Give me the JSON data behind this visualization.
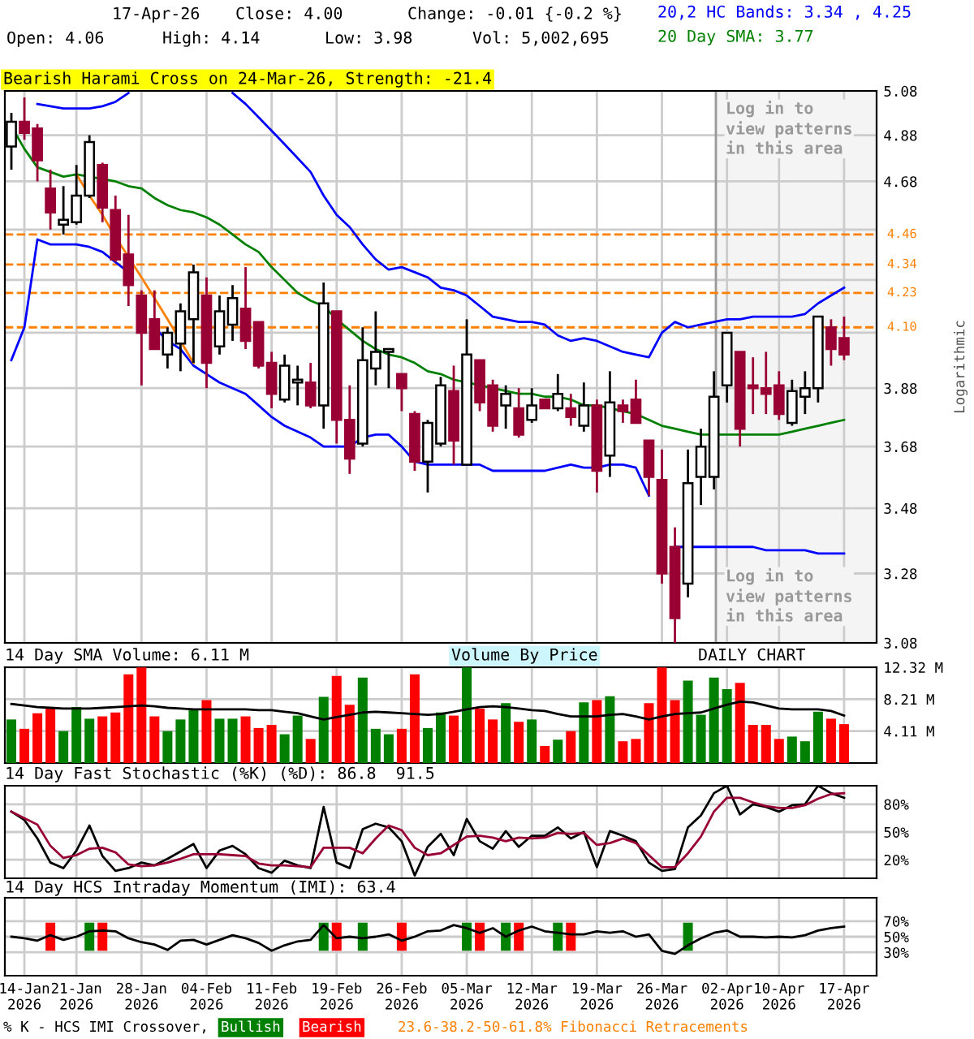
{
  "chart_data": [
    {
      "type": "candlestick",
      "categories": [
        null,
        null,
        null,
        null,
        null,
        null,
        null,
        null,
        null,
        null,
        null,
        null,
        null,
        null,
        null,
        null,
        null,
        null,
        null,
        null,
        null,
        null,
        null,
        null,
        null,
        null,
        null,
        null,
        null,
        null,
        null,
        null,
        null,
        null,
        null,
        null,
        null,
        null,
        null,
        null,
        null,
        null,
        null,
        null,
        null,
        null,
        null,
        null,
        null,
        null,
        null,
        null,
        null,
        null,
        null,
        null,
        null,
        null,
        null,
        null,
        null,
        null,
        null,
        null,
        null
      ],
      "ohlc": [
        [
          4.83,
          4.98,
          4.73,
          4.94
        ],
        [
          4.94,
          5.05,
          4.86,
          4.89
        ],
        [
          4.91,
          4.93,
          4.68,
          4.77
        ],
        [
          4.65,
          4.73,
          4.48,
          4.55
        ],
        [
          4.5,
          4.66,
          4.46,
          4.52
        ],
        [
          4.51,
          4.75,
          4.5,
          4.62
        ],
        [
          4.62,
          4.88,
          4.61,
          4.85
        ],
        [
          4.75,
          4.76,
          4.51,
          4.57
        ],
        [
          4.56,
          4.62,
          4.35,
          4.36
        ],
        [
          4.38,
          4.54,
          4.18,
          4.26
        ],
        [
          4.22,
          4.24,
          3.89,
          4.08
        ],
        [
          4.13,
          4.24,
          4.02,
          4.02
        ],
        [
          4.0,
          4.1,
          3.95,
          4.08
        ],
        [
          4.04,
          4.19,
          3.94,
          4.16
        ],
        [
          4.13,
          4.34,
          3.97,
          4.31
        ],
        [
          4.22,
          4.29,
          3.88,
          3.97
        ],
        [
          4.03,
          4.22,
          4.0,
          4.16
        ],
        [
          4.11,
          4.26,
          4.05,
          4.21
        ],
        [
          4.17,
          4.33,
          4.02,
          4.05
        ],
        [
          4.12,
          4.12,
          3.95,
          3.96
        ],
        [
          3.97,
          4.01,
          3.81,
          3.86
        ],
        [
          3.84,
          4.0,
          3.83,
          3.96
        ],
        [
          3.9,
          3.96,
          3.82,
          3.91
        ],
        [
          3.9,
          3.97,
          3.81,
          3.82
        ],
        [
          3.82,
          4.27,
          3.74,
          4.19
        ],
        [
          4.16,
          4.16,
          3.69,
          3.77
        ],
        [
          3.77,
          3.89,
          3.59,
          3.64
        ],
        [
          3.69,
          4.1,
          3.68,
          3.98
        ],
        [
          3.95,
          4.16,
          3.89,
          4.01
        ],
        [
          4.01,
          4.02,
          3.88,
          4.02
        ],
        [
          3.93,
          3.93,
          3.8,
          3.88
        ],
        [
          3.79,
          3.8,
          3.6,
          3.63
        ],
        [
          3.63,
          3.77,
          3.53,
          3.76
        ],
        [
          3.69,
          3.92,
          3.68,
          3.89
        ],
        [
          3.87,
          3.96,
          3.62,
          3.7
        ],
        [
          3.62,
          4.13,
          3.62,
          4.0
        ],
        [
          3.98,
          3.98,
          3.8,
          3.83
        ],
        [
          3.89,
          3.91,
          3.73,
          3.75
        ],
        [
          3.82,
          3.89,
          3.74,
          3.86
        ],
        [
          3.81,
          3.88,
          3.71,
          3.72
        ],
        [
          3.77,
          3.88,
          3.76,
          3.82
        ],
        [
          3.84,
          3.84,
          3.81,
          3.81
        ],
        [
          3.81,
          3.93,
          3.8,
          3.86
        ],
        [
          3.81,
          3.86,
          3.75,
          3.78
        ],
        [
          3.75,
          3.9,
          3.73,
          3.82
        ],
        [
          3.82,
          3.84,
          3.53,
          3.6
        ],
        [
          3.65,
          3.94,
          3.58,
          3.83
        ],
        [
          3.82,
          3.84,
          3.76,
          3.8
        ],
        [
          3.84,
          3.91,
          3.76,
          3.76
        ],
        [
          3.7,
          3.7,
          3.52,
          3.58
        ],
        [
          3.57,
          3.67,
          3.25,
          3.28
        ],
        [
          3.36,
          3.42,
          3.08,
          3.15
        ],
        [
          3.25,
          3.67,
          3.21,
          3.56
        ],
        [
          3.58,
          3.74,
          3.49,
          3.68
        ],
        [
          3.58,
          3.94,
          3.54,
          3.85
        ],
        [
          3.89,
          4.08,
          3.83,
          4.08
        ],
        [
          4.01,
          4.01,
          3.68,
          3.74
        ],
        [
          3.89,
          3.99,
          3.79,
          3.88
        ],
        [
          3.88,
          4.01,
          3.79,
          3.86
        ],
        [
          3.89,
          3.94,
          3.77,
          3.79
        ],
        [
          3.76,
          3.91,
          3.75,
          3.87
        ],
        [
          3.85,
          3.94,
          3.79,
          3.88
        ],
        [
          3.88,
          4.14,
          3.83,
          4.14
        ],
        [
          4.1,
          4.13,
          3.96,
          4.02
        ],
        [
          4.06,
          4.14,
          3.98,
          4.0
        ]
      ],
      "colors": [
        "#ffffff",
        "#990033",
        "#990033",
        "#990033",
        "#ffffff",
        "#ffffff",
        "#ffffff",
        "#990033",
        "#990033",
        "#990033",
        "#990033",
        "#990033",
        "#ffffff",
        "#ffffff",
        "#ffffff",
        "#990033",
        "#ffffff",
        "#ffffff",
        "#990033",
        "#990033",
        "#990033",
        "#ffffff",
        "#ffffff",
        "#990033",
        "#ffffff",
        "#990033",
        "#990033",
        "#ffffff",
        "#ffffff",
        "#ffffff",
        "#990033",
        "#990033",
        "#ffffff",
        "#ffffff",
        "#990033",
        "#ffffff",
        "#990033",
        "#990033",
        "#ffffff",
        "#990033",
        "#ffffff",
        "#990033",
        "#ffffff",
        "#990033",
        "#ffffff",
        "#990033",
        "#ffffff",
        "#990033",
        "#990033",
        "#990033",
        "#990033",
        "#990033",
        "#ffffff",
        "#ffffff",
        "#ffffff",
        "#ffffff",
        "#990033",
        "#990033",
        "#990033",
        "#990033",
        "#ffffff",
        "#ffffff",
        "#ffffff",
        "#990033",
        "#990033"
      ],
      "series": [
        {
          "type": "line",
          "name": "20,2 HC Bands: 3.34 , 4.25",
          "color": "#0000ff",
          "values": [
            null,
            null,
            5.02,
            5.01,
            5.0,
            5.0,
            5.0,
            5.01,
            5.03,
            5.07,
            null,
            null,
            null,
            null,
            null,
            null,
            null,
            5.07,
            5.02,
            4.96,
            4.9,
            4.84,
            4.78,
            4.72,
            4.62,
            4.54,
            4.49,
            4.42,
            4.36,
            4.32,
            4.33,
            4.31,
            4.29,
            4.25,
            4.24,
            4.22,
            4.18,
            4.14,
            4.13,
            4.12,
            4.12,
            4.11,
            4.07,
            4.05,
            4.06,
            4.05,
            4.03,
            4.01,
            4.0,
            3.99,
            4.08,
            4.12,
            4.1,
            4.11,
            4.12,
            4.13,
            4.13,
            4.14,
            4.14,
            4.14,
            4.14,
            4.15,
            4.19,
            4.22,
            4.25
          ]
        },
        {
          "type": "line",
          "color": "#0000ff",
          "values": [
            3.98,
            4.1,
            4.44,
            4.42,
            4.42,
            4.42,
            4.41,
            4.39,
            4.35,
            4.31,
            null,
            4.1,
            4.05,
            4.02,
            3.96,
            3.93,
            3.9,
            3.88,
            3.86,
            3.82,
            3.78,
            3.75,
            3.73,
            3.71,
            3.68,
            3.68,
            3.68,
            3.71,
            3.72,
            3.72,
            3.68,
            3.63,
            3.62,
            3.62,
            3.62,
            3.62,
            3.62,
            3.6,
            3.6,
            3.6,
            3.6,
            3.6,
            3.61,
            3.62,
            3.61,
            3.61,
            3.62,
            3.62,
            3.61,
            3.52,
            null,
            3.36,
            3.36,
            3.36,
            3.36,
            3.36,
            3.36,
            3.36,
            3.35,
            3.35,
            3.35,
            3.35,
            3.34,
            3.34,
            3.34
          ]
        },
        {
          "type": "line",
          "name": "20 Day SMA: 3.77",
          "color": "#008000",
          "values": [
            4.92,
            4.82,
            4.74,
            4.72,
            4.7,
            4.71,
            4.7,
            4.69,
            4.68,
            4.66,
            4.65,
            4.61,
            4.58,
            4.56,
            4.55,
            4.53,
            4.5,
            4.46,
            4.42,
            4.39,
            4.33,
            4.28,
            4.23,
            4.2,
            4.18,
            4.13,
            4.09,
            4.05,
            4.02,
            4.0,
            3.99,
            3.97,
            3.94,
            3.93,
            3.91,
            3.9,
            3.89,
            3.88,
            3.87,
            3.86,
            3.86,
            3.85,
            3.85,
            3.84,
            3.82,
            3.82,
            3.81,
            3.8,
            3.79,
            3.77,
            3.75,
            3.74,
            3.73,
            3.72,
            3.72,
            3.72,
            3.72,
            3.72,
            3.72,
            3.72,
            3.73,
            3.74,
            3.75,
            3.76,
            3.77
          ]
        },
        {
          "type": "line",
          "color": "#ff8000",
          "values": [
            null,
            null,
            null,
            null,
            null,
            4.71,
            4.62,
            4.54,
            4.45,
            4.37,
            4.29,
            4.21,
            4.13,
            4.05,
            3.97,
            null,
            null,
            null,
            null,
            null,
            null,
            null,
            null,
            null,
            null,
            null,
            null,
            null,
            null,
            null,
            null,
            null,
            null,
            null,
            null,
            null,
            null,
            null,
            null,
            null,
            null,
            null,
            null,
            null,
            null,
            null,
            null,
            null,
            null,
            null,
            null,
            null,
            null,
            null,
            null,
            null,
            null,
            null,
            null,
            null,
            null,
            null,
            null,
            null,
            null
          ]
        }
      ],
      "log": true,
      "ylim": [
        3.08,
        5.08
      ],
      "yticks": [
        5.08,
        4.88,
        4.68,
        {
          "value": 4.48,
          "label": null
        },
        {
          "value": 4.28,
          "label": null
        },
        {
          "value": 4.08,
          "label": null
        },
        3.88,
        3.68,
        3.48,
        3.28,
        3.08
      ],
      "ylabel": "Logarithmic",
      "ref_lines": [
        {
          "axis": "y",
          "value": 4.46,
          "label": "4.46",
          "color": "#ff8000",
          "line_style": "dashed"
        },
        {
          "axis": "y",
          "value": 4.34,
          "label": "4.34",
          "color": "#ff8000",
          "line_style": "dashed"
        },
        {
          "axis": "y",
          "value": 4.23,
          "label": "4.23",
          "color": "#ff8000",
          "line_style": "dashed"
        },
        {
          "axis": "y",
          "value": 4.1,
          "label": "4.10",
          "color": "#ff8000",
          "line_style": "dashed"
        }
      ],
      "annotations": [
        "17-Apr-26",
        "Close: 4.00",
        "Change: -0.01 {-0.2 %}",
        "Open: 4.06",
        "High: 4.14",
        "Low: 3.98",
        "Vol: 5,002,695",
        "Bearish Harami Cross on 24-Mar-26, Strength: -21.4",
        "Log in to\nview patterns\nin this area",
        "Log in to\nview patterns\nin this area"
      ],
      "grid": true,
      "legend": "top right",
      "tick_labels": "y"
    },
    {
      "type": "bar",
      "title": "14 Day SMA Volume: 6.11 M",
      "categories": [
        null,
        null,
        null,
        null,
        null,
        null,
        null,
        null,
        null,
        null,
        null,
        null,
        null,
        null,
        null,
        null,
        null,
        null,
        null,
        null,
        null,
        null,
        null,
        null,
        null,
        null,
        null,
        null,
        null,
        null,
        null,
        null,
        null,
        null,
        null,
        null,
        null,
        null,
        null,
        null,
        null,
        null,
        null,
        null,
        null,
        null,
        null,
        null,
        null,
        null,
        null,
        null,
        null,
        null,
        null,
        null,
        null,
        null,
        null,
        null,
        null,
        null,
        null,
        null,
        null
      ],
      "series": [
        {
          "values": [
            5.6,
            4.4,
            6.4,
            7.0,
            4.1,
            7.2,
            5.7,
            6.0,
            6.5,
            11.4,
            12.3,
            6.0,
            4.1,
            5.6,
            6.9,
            8.1,
            5.7,
            5.7,
            6.0,
            4.5,
            4.9,
            3.7,
            6.1,
            3.1,
            8.5,
            11.2,
            7.5,
            11.0,
            4.4,
            3.7,
            4.4,
            11.4,
            4.5,
            6.5,
            6.1,
            12.3,
            7.0,
            5.6,
            7.7,
            5.3,
            5.6,
            2.2,
            3.0,
            4.1,
            7.8,
            8.1,
            8.6,
            2.8,
            3.1,
            7.7,
            12.3,
            8.1,
            10.6,
            6.2,
            11.0,
            9.5,
            10.3,
            4.9,
            4.9,
            3.1,
            3.4,
            2.8,
            6.6,
            5.7,
            5.0
          ],
          "colors": [
            "#008000",
            "#ff0000",
            "#ff0000",
            "#ff0000",
            "#008000",
            "#008000",
            "#008000",
            "#ff0000",
            "#ff0000",
            "#ff0000",
            "#ff0000",
            "#ff0000",
            "#008000",
            "#008000",
            "#008000",
            "#ff0000",
            "#008000",
            "#008000",
            "#ff0000",
            "#ff0000",
            "#ff0000",
            "#008000",
            "#008000",
            "#ff0000",
            "#008000",
            "#ff0000",
            "#ff0000",
            "#008000",
            "#008000",
            "#008000",
            "#ff0000",
            "#ff0000",
            "#008000",
            "#008000",
            "#ff0000",
            "#008000",
            "#ff0000",
            "#ff0000",
            "#008000",
            "#ff0000",
            "#008000",
            "#ff0000",
            "#008000",
            "#ff0000",
            "#008000",
            "#ff0000",
            "#008000",
            "#ff0000",
            "#ff0000",
            "#ff0000",
            "#ff0000",
            "#ff0000",
            "#008000",
            "#008000",
            "#008000",
            "#008000",
            "#ff0000",
            "#ff0000",
            "#ff0000",
            "#ff0000",
            "#008000",
            "#008000",
            "#008000",
            "#ff0000",
            "#ff0000"
          ]
        },
        {
          "type": "line",
          "color": "#000000",
          "values": [
            7.6,
            7.4,
            7.2,
            7.1,
            7.0,
            7.0,
            7.0,
            7.1,
            7.2,
            7.3,
            7.4,
            7.3,
            7.1,
            7.0,
            6.9,
            6.9,
            6.9,
            6.9,
            6.9,
            6.8,
            6.8,
            6.6,
            6.4,
            6.0,
            5.6,
            5.9,
            6.2,
            6.5,
            6.6,
            6.5,
            6.4,
            6.3,
            6.2,
            6.3,
            6.6,
            6.9,
            7.2,
            7.3,
            7.2,
            7.0,
            6.8,
            6.7,
            6.3,
            6.0,
            6.0,
            6.0,
            6.2,
            6.3,
            6.0,
            5.6,
            6.0,
            6.3,
            6.4,
            6.5,
            7.0,
            7.5,
            7.9,
            7.8,
            7.4,
            7.0,
            6.9,
            6.9,
            6.9,
            6.7,
            6.1
          ]
        }
      ],
      "ylim": [
        0,
        12.32
      ],
      "yticks": [
        {
          "value": 4.11,
          "label": "4.11 M"
        },
        {
          "value": 8.21,
          "label": "8.21 M"
        },
        {
          "value": 12.32,
          "label": "12.32 M"
        }
      ],
      "annotations": [
        "Volume By Price",
        "DAILY CHART"
      ],
      "grid": true,
      "tick_labels": "y"
    },
    {
      "type": "line",
      "title": "14 Day Fast Stochastic (%K) (%D): 86.8  91.5",
      "categories": [
        null,
        null,
        null,
        null,
        null,
        null,
        null,
        null,
        null,
        null,
        null,
        null,
        null,
        null,
        null,
        null,
        null,
        null,
        null,
        null,
        null,
        null,
        null,
        null,
        null,
        null,
        null,
        null,
        null,
        null,
        null,
        null,
        null,
        null,
        null,
        null,
        null,
        null,
        null,
        null,
        null,
        null,
        null,
        null,
        null,
        null,
        null,
        null,
        null,
        null,
        null,
        null,
        null,
        null,
        null,
        null,
        null,
        null,
        null,
        null,
        null,
        null,
        null,
        null,
        null
      ],
      "series": [
        {
          "color": "#000000",
          "values": [
            72,
            63,
            43,
            17,
            11,
            30,
            57,
            24,
            8,
            11,
            17,
            14,
            21,
            29,
            37,
            11,
            30,
            35,
            26,
            11,
            6,
            19,
            14,
            11,
            77,
            17,
            11,
            53,
            59,
            55,
            40,
            3,
            34,
            48,
            25,
            64,
            40,
            32,
            51,
            34,
            46,
            46,
            55,
            43,
            50,
            12,
            51,
            46,
            40,
            17,
            8,
            10,
            55,
            68,
            92,
            100,
            69,
            80,
            77,
            72,
            79,
            80,
            100,
            92,
            87
          ]
        },
        {
          "color": "#990033",
          "values": [
            72,
            65,
            58,
            35,
            22,
            25,
            32,
            33,
            28,
            15,
            13,
            14,
            17,
            21,
            26,
            26,
            26,
            25,
            24,
            16,
            14,
            14,
            13,
            12,
            33,
            33,
            33,
            27,
            43,
            57,
            52,
            33,
            25,
            27,
            36,
            45,
            46,
            44,
            40,
            44,
            43,
            44,
            49,
            48,
            49,
            36,
            38,
            43,
            38,
            25,
            12,
            12,
            27,
            45,
            72,
            87,
            87,
            82,
            78,
            76,
            76,
            79,
            86,
            91,
            92
          ]
        }
      ],
      "ylim": [
        0,
        100
      ],
      "yticks": [
        {
          "value": 20,
          "label": "20%"
        },
        {
          "value": 50,
          "label": "50%"
        },
        {
          "value": 80,
          "label": "80%"
        }
      ],
      "grid": true,
      "tick_labels": "y"
    },
    {
      "type": "line",
      "title": "14 Day HCS Intraday Momentum (IMI): 63.4",
      "categories": [
        null,
        "14-Jan\n2026",
        null,
        null,
        null,
        "21-Jan\n2026",
        null,
        null,
        null,
        null,
        "28-Jan\n2026",
        null,
        null,
        null,
        null,
        "04-Feb\n2026",
        null,
        null,
        null,
        null,
        "11-Feb\n2026",
        null,
        null,
        null,
        null,
        "19-Feb\n2026",
        null,
        null,
        null,
        null,
        "26-Feb\n2026",
        null,
        null,
        null,
        null,
        "05-Mar\n2026",
        null,
        null,
        null,
        null,
        "12-Mar\n2026",
        null,
        null,
        null,
        null,
        "19-Mar\n2026",
        null,
        null,
        null,
        null,
        "26-Mar\n2026",
        null,
        null,
        null,
        null,
        "02-Apr\n2026",
        null,
        null,
        null,
        "10-Apr\n2026",
        null,
        null,
        null,
        null,
        "17-Apr\n2026"
      ],
      "series": [
        {
          "color": "#000000",
          "values": [
            50,
            48,
            45,
            52,
            46,
            50,
            57,
            58,
            57,
            48,
            43,
            40,
            33,
            45,
            46,
            40,
            46,
            52,
            48,
            42,
            32,
            39,
            44,
            46,
            65,
            48,
            50,
            48,
            50,
            53,
            45,
            50,
            57,
            58,
            65,
            61,
            55,
            61,
            50,
            58,
            63,
            57,
            55,
            53,
            53,
            57,
            55,
            57,
            50,
            53,
            32,
            28,
            39,
            48,
            55,
            58,
            50,
            50,
            49,
            50,
            49,
            52,
            58,
            61,
            63
          ]
        },
        {
          "type": "bar",
          "name": "Bullish",
          "color": "#008000",
          "base": [
            null,
            null,
            null,
            null,
            null,
            null,
            32,
            null,
            null,
            null,
            null,
            null,
            null,
            null,
            null,
            null,
            null,
            null,
            null,
            null,
            null,
            null,
            null,
            null,
            32,
            null,
            null,
            32,
            null,
            null,
            null,
            null,
            null,
            null,
            null,
            32,
            null,
            null,
            32,
            null,
            null,
            null,
            32,
            null,
            null,
            null,
            null,
            null,
            null,
            null,
            null,
            null,
            32,
            null,
            null,
            null,
            null,
            null,
            null,
            null,
            null,
            null,
            null,
            null,
            null
          ],
          "values": [
            null,
            null,
            null,
            null,
            null,
            null,
            36,
            null,
            null,
            null,
            null,
            null,
            null,
            null,
            null,
            null,
            null,
            null,
            null,
            null,
            null,
            null,
            null,
            null,
            36,
            null,
            null,
            36,
            null,
            null,
            null,
            null,
            null,
            null,
            null,
            36,
            null,
            null,
            36,
            null,
            null,
            null,
            36,
            null,
            null,
            null,
            null,
            null,
            null,
            null,
            null,
            null,
            36,
            null,
            null,
            null,
            null,
            null,
            null,
            null,
            null,
            null,
            null,
            null,
            null
          ]
        },
        {
          "type": "bar",
          "name": "Bearish",
          "color": "#ff0000",
          "base": [
            null,
            null,
            null,
            32,
            null,
            null,
            null,
            32,
            null,
            null,
            null,
            null,
            null,
            null,
            null,
            null,
            null,
            null,
            null,
            null,
            null,
            null,
            null,
            null,
            null,
            32,
            null,
            null,
            null,
            null,
            32,
            null,
            null,
            null,
            null,
            null,
            32,
            null,
            null,
            32,
            null,
            null,
            null,
            32,
            null,
            null,
            null,
            null,
            null,
            null,
            null,
            null,
            null,
            null,
            null,
            null,
            null,
            null,
            null,
            null,
            null,
            null,
            null,
            null,
            null
          ],
          "values": [
            null,
            null,
            null,
            36,
            null,
            null,
            null,
            36,
            null,
            null,
            null,
            null,
            null,
            null,
            null,
            null,
            null,
            null,
            null,
            null,
            null,
            null,
            null,
            null,
            null,
            36,
            null,
            null,
            null,
            null,
            36,
            null,
            null,
            null,
            null,
            null,
            36,
            null,
            null,
            36,
            null,
            null,
            null,
            36,
            null,
            null,
            null,
            null,
            null,
            null,
            null,
            null,
            null,
            null,
            null,
            null,
            null,
            null,
            null,
            null,
            null,
            null,
            null,
            null,
            null
          ]
        }
      ],
      "ylim": [
        0,
        100
      ],
      "yticks": [
        {
          "value": 30,
          "label": "30%"
        },
        {
          "value": 50,
          "label": "50%"
        },
        {
          "value": 70,
          "label": "70%"
        }
      ],
      "annotations": [
        "% K - HCS IMI Crossover,",
        "23.6-38.2-50-61.8% Fibonacci Retracements"
      ],
      "grid": true,
      "legend": "bottom"
    }
  ]
}
